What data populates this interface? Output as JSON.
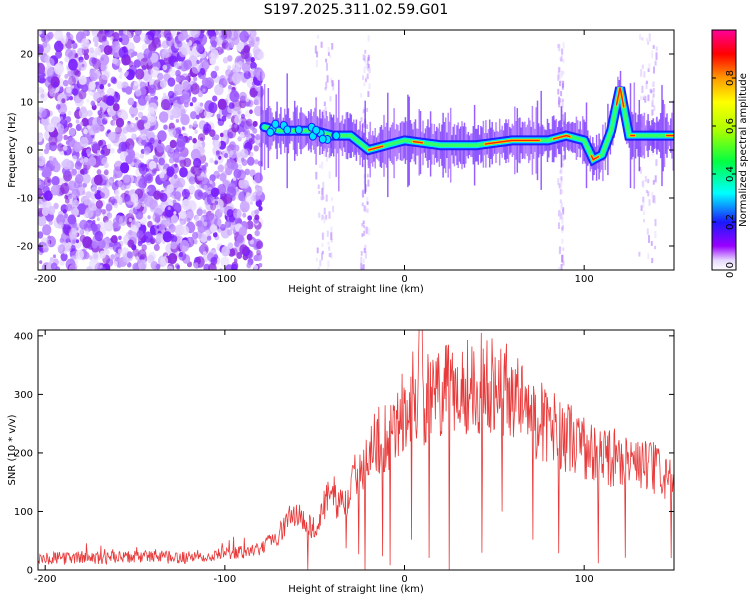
{
  "title": "S197.2025.311.02.59.G01",
  "colors": {
    "snr_line": "#e83a3a",
    "axis": "#000000",
    "background": "#ffffff"
  },
  "chart_data": [
    {
      "type": "heatmap",
      "title": "S197.2025.311.02.59.G01",
      "xlabel": "Height of straight line (km)",
      "ylabel": "Frequency (Hz)",
      "xlim": [
        -204,
        150
      ],
      "ylim": [
        -25,
        25
      ],
      "xticks": [
        -200,
        -100,
        0,
        100
      ],
      "yticks": [
        -20,
        -10,
        0,
        10,
        20
      ],
      "xtick_labels": [
        "-200",
        "-100",
        "0",
        "100"
      ],
      "ytick_labels": [
        "-20",
        "-10",
        "0",
        "10",
        "20"
      ],
      "signal_track": {
        "x": [
          -80,
          -70,
          -60,
          -50,
          -40,
          -30,
          -20,
          -10,
          0,
          20,
          40,
          60,
          80,
          90,
          100,
          105,
          110,
          115,
          120,
          125,
          130,
          140,
          150
        ],
        "y": [
          5,
          4,
          4,
          4,
          3,
          3,
          0,
          1,
          2,
          1,
          1,
          2,
          2,
          3,
          2,
          -2,
          -1,
          4,
          13,
          3,
          3,
          3,
          3
        ]
      },
      "noise_region": {
        "x_start": -204,
        "x_end": -80
      },
      "colorbar": {
        "label": "Normalized spectral amplitude",
        "range": [
          0,
          1
        ],
        "ticks": [
          0.0,
          0.2,
          0.4,
          0.6,
          0.8
        ],
        "tick_labels": [
          "0.0",
          "0.2",
          "0.4",
          "0.6",
          "0.8"
        ]
      }
    },
    {
      "type": "line",
      "xlabel": "Height of straight line (km)",
      "ylabel": "SNR (10 * v/v)",
      "xlim": [
        -204,
        150
      ],
      "ylim": [
        0,
        410
      ],
      "xticks": [
        -200,
        -100,
        0,
        100
      ],
      "yticks": [
        0,
        100,
        200,
        300,
        400
      ],
      "xtick_labels": [
        "-200",
        "-100",
        "0",
        "100"
      ],
      "ytick_labels": [
        "0",
        "100",
        "200",
        "300",
        "400"
      ],
      "series": [
        {
          "name": "SNR",
          "x": [
            -204,
            -190,
            -180,
            -170,
            -160,
            -150,
            -140,
            -130,
            -120,
            -110,
            -100,
            -90,
            -80,
            -75,
            -70,
            -65,
            -60,
            -55,
            -50,
            -45,
            -40,
            -35,
            -30,
            -25,
            -20,
            -15,
            -10,
            -5,
            0,
            5,
            10,
            15,
            20,
            25,
            30,
            35,
            40,
            45,
            50,
            55,
            60,
            65,
            70,
            75,
            80,
            85,
            90,
            95,
            100,
            105,
            110,
            115,
            120,
            125,
            130,
            135,
            140,
            145,
            150
          ],
          "values": [
            20,
            20,
            22,
            20,
            21,
            22,
            24,
            20,
            22,
            25,
            28,
            30,
            35,
            50,
            60,
            85,
            100,
            80,
            70,
            110,
            130,
            110,
            135,
            180,
            200,
            220,
            230,
            250,
            270,
            300,
            290,
            290,
            300,
            305,
            310,
            315,
            315,
            320,
            320,
            315,
            300,
            285,
            270,
            255,
            245,
            240,
            230,
            220,
            210,
            195,
            195,
            190,
            200,
            185,
            180,
            175,
            170,
            160,
            150
          ]
        }
      ]
    }
  ]
}
